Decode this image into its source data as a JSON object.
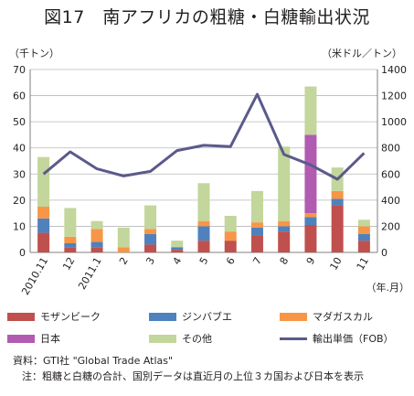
{
  "title": "図17　南アフリカの粗糖・白糖輸出状況",
  "chart_data": {
    "type": "bar",
    "stacked": true,
    "title": "図17　南アフリカの粗糖・白糖輸出状況",
    "categories": [
      "2010.11",
      "12",
      "2011.1",
      "2",
      "3",
      "4",
      "5",
      "6",
      "7",
      "8",
      "9",
      "10",
      "11"
    ],
    "xlabel": "（年.月）",
    "ylabel": "（千トン）",
    "ylim": [
      0,
      70
    ],
    "yticks": [
      0,
      10,
      20,
      30,
      40,
      50,
      60,
      70
    ],
    "y2label": "（米ドル／トン）",
    "y2lim": [
      0,
      1400
    ],
    "y2ticks": [
      0,
      200,
      400,
      600,
      800,
      1000,
      1200,
      1400
    ],
    "grid": true,
    "legend_position": "bottom",
    "series": [
      {
        "name": "モザンビーク",
        "color": "#c0504d",
        "values": [
          7.5,
          2,
          2,
          0,
          3,
          1,
          4.5,
          4.5,
          6.5,
          8,
          10.5,
          18,
          4.5
        ]
      },
      {
        "name": "ジンバブエ",
        "color": "#4f81bd",
        "values": [
          5.5,
          1.5,
          2,
          0,
          4,
          1,
          5.5,
          0,
          3,
          2,
          3,
          2.5,
          2.5
        ]
      },
      {
        "name": "マダガスカル",
        "color": "#f79646",
        "values": [
          4.5,
          2.5,
          5,
          2,
          2,
          0,
          2,
          3.5,
          2,
          2,
          1.5,
          3,
          3
        ]
      },
      {
        "name": "日本",
        "color": "#b15bb1",
        "values": [
          0,
          0,
          0,
          0,
          0,
          0,
          0,
          0,
          0,
          0,
          30,
          0,
          0
        ]
      },
      {
        "name": "その他",
        "color": "#c3d69b",
        "values": [
          19,
          11,
          3,
          7.5,
          9,
          2.5,
          14.5,
          6,
          12,
          28.5,
          18.5,
          9,
          2.5
        ]
      }
    ],
    "line_series": {
      "name": "輸出単価（FOB）",
      "axis": "right",
      "color": "#5b5a8a",
      "values": [
        600,
        770,
        640,
        585,
        620,
        780,
        820,
        810,
        1210,
        750,
        670,
        560,
        760
      ]
    }
  },
  "legend": [
    {
      "label": "モザンビーク",
      "color": "#c0504d"
    },
    {
      "label": "ジンバブエ",
      "color": "#4f81bd"
    },
    {
      "label": "マダガスカル",
      "color": "#f79646"
    },
    {
      "label": "日本",
      "color": "#b15bb1"
    },
    {
      "label": "その他",
      "color": "#c3d69b"
    },
    {
      "label": "輸出単価（FOB）",
      "color": "#5b5a8a"
    }
  ],
  "notes": {
    "source": "資料：GTI社 \"Global Trade Atlas\"",
    "note": "注：粗糖と白糖の合計、国別データは直近月の上位３カ国および日本を表示"
  }
}
